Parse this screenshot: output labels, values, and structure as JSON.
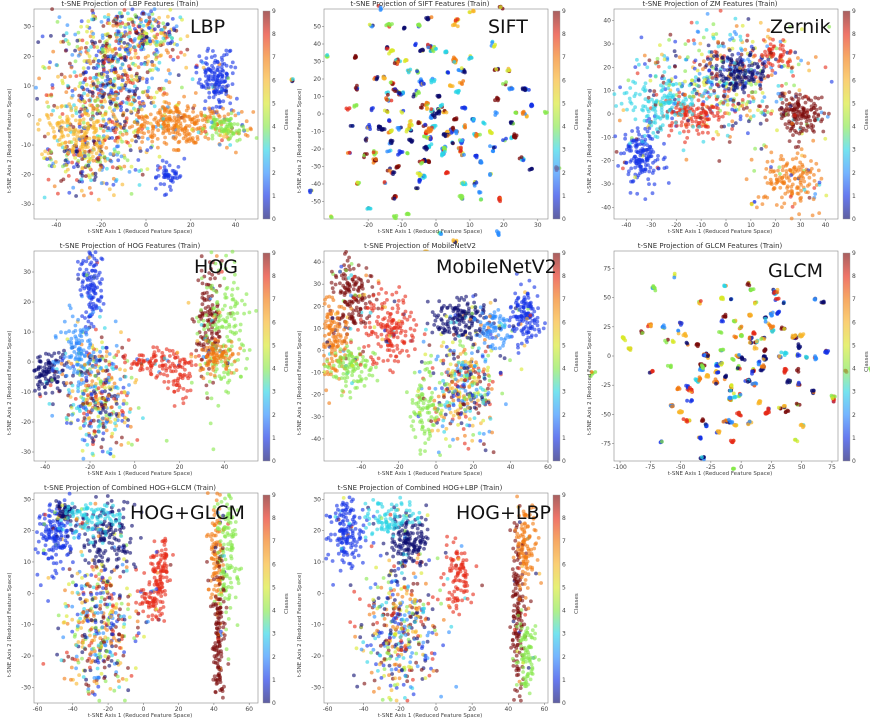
{
  "chart_data": [
    {
      "type": "scatter",
      "title": "t-SNE Projection of LBP Features (Train)",
      "label": "LBP",
      "xlabel": "t-SNE Axis 1 (Reduced Feature Space)",
      "ylabel": "t-SNE Axis 2 (Reduced Feature Space)",
      "colorbar_label": "Classes",
      "colorbar_ticks": [
        0,
        1,
        2,
        3,
        4,
        5,
        6,
        7,
        8,
        9
      ],
      "xticks": [
        -40,
        -20,
        0,
        20,
        40
      ],
      "yticks": [
        -30,
        -20,
        -10,
        0,
        10,
        20,
        30
      ],
      "xlim": [
        -50,
        50
      ],
      "ylim": [
        -35,
        36
      ],
      "clusters": [
        {
          "x": -15,
          "y": 12,
          "sx": 13,
          "sy": 13,
          "n": 700,
          "c": "mix"
        },
        {
          "x": 0,
          "y": 28,
          "sx": 10,
          "sy": 5,
          "n": 200,
          "c": "mix"
        },
        {
          "x": 32,
          "y": 12,
          "sx": 4,
          "sy": 5,
          "n": 160,
          "c": 1
        },
        {
          "x": 15,
          "y": -3,
          "sx": 12,
          "sy": 4,
          "n": 300,
          "c": 7
        },
        {
          "x": 35,
          "y": -4,
          "sx": 5,
          "sy": 2,
          "n": 90,
          "c": 4
        },
        {
          "x": -25,
          "y": -15,
          "sx": 10,
          "sy": 6,
          "n": 200,
          "c": "mix"
        },
        {
          "x": 10,
          "y": -20,
          "sx": 3,
          "sy": 3,
          "n": 50,
          "c": 1
        },
        {
          "x": -30,
          "y": -5,
          "sx": 8,
          "sy": 5,
          "n": 150,
          "c": 6
        }
      ]
    },
    {
      "type": "scatter",
      "title": "t-SNE Projection of SIFT Features (Train)",
      "label": "SIFT",
      "xlabel": "t-SNE Axis 1 (Reduced Feature Space)",
      "ylabel": "t-SNE Axis 2 (Reduced Feature Space)",
      "colorbar_label": "Classes",
      "colorbar_ticks": [
        0,
        1,
        2,
        3,
        4,
        5,
        6,
        7,
        8,
        9
      ],
      "xticks": [
        -20,
        -10,
        0,
        10,
        20,
        30
      ],
      "yticks": [
        -50,
        -40,
        -30,
        -20,
        -10,
        0,
        10,
        20,
        30,
        40,
        50
      ],
      "xlim": [
        -33,
        33
      ],
      "ylim": [
        -60,
        60
      ],
      "clusters": [
        {
          "x": 0,
          "y": 0,
          "sx": 14,
          "sy": 28,
          "n": 180,
          "c": "blobs"
        }
      ]
    },
    {
      "type": "scatter",
      "title": "t-SNE Projection of ZM Features (Train)",
      "label": "Zernik",
      "xlabel": "t-SNE Axis 1 (Reduced Feature Space)",
      "ylabel": "t-SNE Axis 2 (Reduced Feature Space)",
      "colorbar_label": "Classes",
      "colorbar_ticks": [
        0,
        1,
        2,
        3,
        4,
        5,
        6,
        7,
        8,
        9
      ],
      "xticks": [
        -40,
        -30,
        -20,
        -10,
        0,
        10,
        20,
        30,
        40
      ],
      "yticks": [
        -40,
        -30,
        -20,
        -10,
        0,
        10,
        20,
        30,
        40
      ],
      "xlim": [
        -45,
        45
      ],
      "ylim": [
        -45,
        45
      ],
      "clusters": [
        {
          "x": 0,
          "y": 15,
          "sx": 16,
          "sy": 12,
          "n": 500,
          "c": "mix"
        },
        {
          "x": -34,
          "y": -18,
          "sx": 4,
          "sy": 6,
          "n": 160,
          "c": 1
        },
        {
          "x": 27,
          "y": -28,
          "sx": 6,
          "sy": 6,
          "n": 160,
          "c": 7
        },
        {
          "x": 30,
          "y": 0,
          "sx": 5,
          "sy": 5,
          "n": 160,
          "c": 9
        },
        {
          "x": 5,
          "y": 18,
          "sx": 5,
          "sy": 4,
          "n": 120,
          "c": 0
        },
        {
          "x": -12,
          "y": 0,
          "sx": 6,
          "sy": 4,
          "n": 120,
          "c": 8
        },
        {
          "x": 20,
          "y": 25,
          "sx": 4,
          "sy": 3,
          "n": 60,
          "c": 8
        },
        {
          "x": -25,
          "y": 5,
          "sx": 8,
          "sy": 6,
          "n": 150,
          "c": 3
        }
      ]
    },
    {
      "type": "scatter",
      "title": "t-SNE Projection of HOG Features (Train)",
      "label": "HOG",
      "xlabel": "t-SNE Axis 1 (Reduced Feature Space)",
      "ylabel": "t-SNE Axis 2 (Reduced Feature Space)",
      "colorbar_label": "Classes",
      "colorbar_ticks": [
        0,
        1,
        2,
        3,
        4,
        5,
        6,
        7,
        8,
        9
      ],
      "xticks": [
        -40,
        -20,
        0,
        20,
        40
      ],
      "yticks": [
        -30,
        -20,
        -10,
        0,
        10,
        20,
        30
      ],
      "xlim": [
        -45,
        55
      ],
      "ylim": [
        -33,
        37
      ],
      "clusters": [
        {
          "x": -20,
          "y": 25,
          "sx": 3,
          "sy": 7,
          "n": 130,
          "c": 1
        },
        {
          "x": -16,
          "y": -10,
          "sx": 8,
          "sy": 10,
          "n": 400,
          "c": "mix"
        },
        {
          "x": -38,
          "y": -3,
          "sx": 5,
          "sy": 3,
          "n": 120,
          "c": 0
        },
        {
          "x": -25,
          "y": 5,
          "sx": 4,
          "sy": 6,
          "n": 100,
          "c": 2
        },
        {
          "x": 10,
          "y": 0,
          "sx": 8,
          "sy": 2,
          "n": 100,
          "c": 8
        },
        {
          "x": 33,
          "y": 15,
          "sx": 3,
          "sy": 10,
          "n": 140,
          "c": 9
        },
        {
          "x": 40,
          "y": 10,
          "sx": 5,
          "sy": 12,
          "n": 160,
          "c": 4
        },
        {
          "x": 37,
          "y": 2,
          "sx": 4,
          "sy": 3,
          "n": 90,
          "c": 7
        },
        {
          "x": 20,
          "y": -5,
          "sx": 3,
          "sy": 4,
          "n": 50,
          "c": 8
        }
      ]
    },
    {
      "type": "scatter",
      "title": "t-SNE Projection of MobileNetV2",
      "label": "MobileNetV2",
      "xlabel": "t-SNE Axis 1 (Reduced Feature Space)",
      "ylabel": "t-SNE Axis 2 (Reduced Feature Space)",
      "colorbar_label": "Classes",
      "colorbar_ticks": [
        0,
        1,
        2,
        3,
        4,
        5,
        6,
        7,
        8,
        9
      ],
      "xticks": [
        -40,
        -20,
        0,
        20,
        40,
        60
      ],
      "yticks": [
        -40,
        -30,
        -20,
        -10,
        0,
        10,
        20,
        30,
        40
      ],
      "xlim": [
        -60,
        60
      ],
      "ylim": [
        -50,
        45
      ],
      "clusters": [
        {
          "x": -45,
          "y": 25,
          "sx": 5,
          "sy": 9,
          "n": 160,
          "c": 9
        },
        {
          "x": -55,
          "y": 5,
          "sx": 5,
          "sy": 10,
          "n": 160,
          "c": 7
        },
        {
          "x": -45,
          "y": -8,
          "sx": 6,
          "sy": 5,
          "n": 110,
          "c": 4
        },
        {
          "x": -25,
          "y": 10,
          "sx": 7,
          "sy": 8,
          "n": 180,
          "c": 8
        },
        {
          "x": 15,
          "y": -15,
          "sx": 8,
          "sy": 14,
          "n": 380,
          "c": "mix"
        },
        {
          "x": 12,
          "y": 15,
          "sx": 7,
          "sy": 5,
          "n": 150,
          "c": 0
        },
        {
          "x": 48,
          "y": 15,
          "sx": 4,
          "sy": 6,
          "n": 140,
          "c": 1
        },
        {
          "x": -5,
          "y": -25,
          "sx": 4,
          "sy": 10,
          "n": 100,
          "c": 4
        },
        {
          "x": 30,
          "y": 10,
          "sx": 4,
          "sy": 5,
          "n": 80,
          "c": 2
        }
      ]
    },
    {
      "type": "scatter",
      "title": "t-SNE Projection of GLCM Features (Train)",
      "label": "GLCM",
      "xlabel": "t-SNE Axis 1 (Reduced Feature Space)",
      "ylabel": "t-SNE Axis 2 (Reduced Feature Space)",
      "colorbar_label": "Classes",
      "colorbar_ticks": [
        0,
        1,
        2,
        3,
        4,
        5,
        6,
        7,
        8,
        9
      ],
      "xticks": [
        -100,
        -75,
        -50,
        -25,
        0,
        25,
        50,
        75
      ],
      "yticks": [
        -75,
        -50,
        -25,
        0,
        25,
        50,
        75
      ],
      "xlim": [
        -105,
        80
      ],
      "ylim": [
        -90,
        90
      ],
      "clusters": [
        {
          "x": 0,
          "y": 0,
          "sx": 40,
          "sy": 38,
          "n": 140,
          "c": "blobs"
        }
      ]
    },
    {
      "type": "scatter",
      "title": "t-SNE Projection of Combined HOG+GLCM (Train)",
      "label": "HOG+GLCM",
      "xlabel": "t-SNE Axis 1 (Reduced Feature Space)",
      "ylabel": "t-SNE Axis 2 (Reduced Feature Space)",
      "colorbar_label": "Classes",
      "colorbar_ticks": [
        0,
        1,
        2,
        3,
        4,
        5,
        6,
        7,
        8,
        9
      ],
      "xticks": [
        -60,
        -40,
        -20,
        0,
        20,
        40,
        60
      ],
      "yticks": [
        -30,
        -20,
        -10,
        0,
        10,
        20,
        30
      ],
      "xlim": [
        -62,
        65
      ],
      "ylim": [
        -35,
        32
      ],
      "clusters": [
        {
          "x": -50,
          "y": 18,
          "sx": 5,
          "sy": 6,
          "n": 160,
          "c": 1
        },
        {
          "x": -45,
          "y": 26,
          "sx": 3,
          "sy": 2,
          "n": 60,
          "c": 0
        },
        {
          "x": -25,
          "y": -10,
          "sx": 10,
          "sy": 12,
          "n": 420,
          "c": "mix"
        },
        {
          "x": -20,
          "y": 18,
          "sx": 8,
          "sy": 6,
          "n": 150,
          "c": 0
        },
        {
          "x": -30,
          "y": 24,
          "sx": 8,
          "sy": 3,
          "n": 100,
          "c": 3
        },
        {
          "x": 10,
          "y": 8,
          "sx": 3,
          "sy": 5,
          "n": 90,
          "c": 8
        },
        {
          "x": 5,
          "y": -3,
          "sx": 4,
          "sy": 3,
          "n": 70,
          "c": 8
        },
        {
          "x": 42,
          "y": 12,
          "sx": 2,
          "sy": 12,
          "n": 110,
          "c": 7
        },
        {
          "x": 48,
          "y": 15,
          "sx": 3,
          "sy": 12,
          "n": 130,
          "c": 4
        },
        {
          "x": 43,
          "y": -15,
          "sx": 2,
          "sy": 12,
          "n": 140,
          "c": 9
        }
      ]
    },
    {
      "type": "scatter",
      "title": "t-SNE Projection of Combined HOG+LBP (Train)",
      "label": "HOG+LBP",
      "xlabel": "t-SNE Axis 1 (Reduced Feature Space)",
      "ylabel": "t-SNE Axis 2 (Reduced Feature Space)",
      "colorbar_label": "Classes",
      "colorbar_ticks": [
        0,
        1,
        2,
        3,
        4,
        5,
        6,
        7,
        8,
        9
      ],
      "xticks": [
        -60,
        -40,
        -20,
        0,
        20,
        40,
        60
      ],
      "yticks": [
        -30,
        -20,
        -10,
        0,
        10,
        20,
        30
      ],
      "xlim": [
        -62,
        62
      ],
      "ylim": [
        -35,
        32
      ],
      "clusters": [
        {
          "x": -50,
          "y": 20,
          "sx": 5,
          "sy": 6,
          "n": 160,
          "c": 1
        },
        {
          "x": -20,
          "y": -12,
          "sx": 10,
          "sy": 12,
          "n": 420,
          "c": "mix"
        },
        {
          "x": -15,
          "y": 17,
          "sx": 6,
          "sy": 5,
          "n": 150,
          "c": 0
        },
        {
          "x": -25,
          "y": 24,
          "sx": 8,
          "sy": 3,
          "n": 100,
          "c": 3
        },
        {
          "x": 12,
          "y": 5,
          "sx": 4,
          "sy": 6,
          "n": 100,
          "c": 8
        },
        {
          "x": 45,
          "y": -5,
          "sx": 2,
          "sy": 15,
          "n": 150,
          "c": 9
        },
        {
          "x": 50,
          "y": 15,
          "sx": 3,
          "sy": 8,
          "n": 110,
          "c": 7
        },
        {
          "x": 50,
          "y": -20,
          "sx": 3,
          "sy": 6,
          "n": 90,
          "c": 4
        }
      ]
    }
  ],
  "colors": {
    "class_0": "#0a0a6e",
    "class_1": "#1432e6",
    "class_2": "#2a8cff",
    "class_3": "#2ad4e6",
    "class_4": "#86e84a",
    "class_5": "#d8e82a",
    "class_6": "#f8b52a",
    "class_7": "#f27a10",
    "class_8": "#e62a18",
    "class_9": "#7a0a0a"
  }
}
